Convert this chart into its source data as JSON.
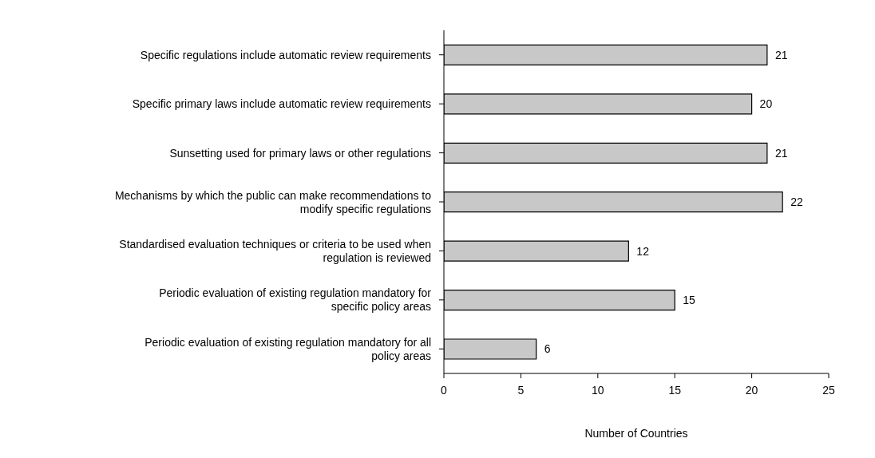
{
  "chart_data": {
    "type": "bar",
    "orientation": "horizontal",
    "xlabel": "Number of Countries",
    "categories": [
      "Specific regulations include automatic review requirements",
      "Specific primary laws include automatic review requirements",
      "Sunsetting used for primary laws or other regulations",
      "Mechanisms by which the public can make recommendations to modify specific regulations",
      "Standardised evaluation techniques or criteria to be used when regulation is reviewed",
      "Periodic evaluation of existing regulation mandatory for specific policy areas",
      "Periodic evaluation of existing regulation mandatory for all policy areas"
    ],
    "values": [
      21,
      20,
      21,
      22,
      12,
      15,
      6
    ],
    "color": "#c8c8c8",
    "xlim": [
      0,
      25
    ],
    "xticks": [
      0,
      5,
      10,
      15,
      20,
      25
    ],
    "grid": false,
    "legend": false,
    "data_labels": true
  }
}
